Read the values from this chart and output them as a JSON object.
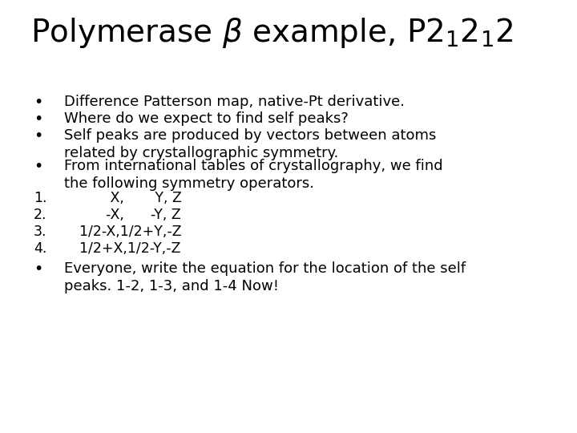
{
  "title_fontsize": 28,
  "bullet_fontsize": 13,
  "mono_fontsize": 12.5,
  "bg_color": "#ffffff",
  "text_color": "#000000",
  "bullets": [
    "Difference Patterson map, native-Pt derivative.",
    "Where do we expect to find self peaks?",
    "Self peaks are produced by vectors between atoms\nrelated by crystallographic symmetry.",
    "From international tables of crystallography, we find\nthe following symmetry operators."
  ],
  "numbered_labels": [
    "1.",
    "2.",
    "3.",
    "4."
  ],
  "numbered_items": [
    "         X,       Y, Z",
    "        -X,      -Y, Z",
    "  1/2-X,1/2+Y,-Z",
    "  1/2+X,1/2-Y,-Z"
  ],
  "final_bullet": "Everyone, write the equation for the location of the self\npeaks. 1-2, 1-3, and 1-4 Now!",
  "bullet_char": "•",
  "title": "Polymerase $\\beta$ example, P2$_1$2$_1$2"
}
